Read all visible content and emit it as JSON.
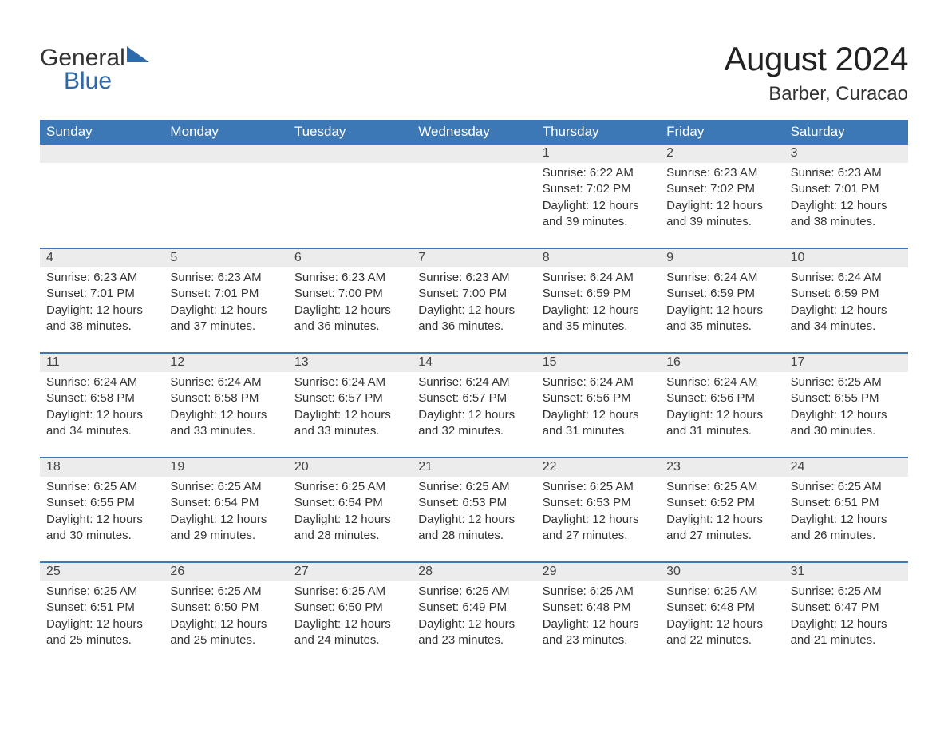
{
  "logo": {
    "word1": "General",
    "word2": "Blue",
    "accent_color": "#2e6aa8"
  },
  "title": "August 2024",
  "location": "Barber, Curacao",
  "header_bg": "#3b78b5",
  "daynum_bg": "#ececec",
  "day_names": [
    "Sunday",
    "Monday",
    "Tuesday",
    "Wednesday",
    "Thursday",
    "Friday",
    "Saturday"
  ],
  "weeks": [
    [
      null,
      null,
      null,
      null,
      {
        "n": "1",
        "sunrise": "Sunrise: 6:22 AM",
        "sunset": "Sunset: 7:02 PM",
        "d1": "Daylight: 12 hours",
        "d2": "and 39 minutes."
      },
      {
        "n": "2",
        "sunrise": "Sunrise: 6:23 AM",
        "sunset": "Sunset: 7:02 PM",
        "d1": "Daylight: 12 hours",
        "d2": "and 39 minutes."
      },
      {
        "n": "3",
        "sunrise": "Sunrise: 6:23 AM",
        "sunset": "Sunset: 7:01 PM",
        "d1": "Daylight: 12 hours",
        "d2": "and 38 minutes."
      }
    ],
    [
      {
        "n": "4",
        "sunrise": "Sunrise: 6:23 AM",
        "sunset": "Sunset: 7:01 PM",
        "d1": "Daylight: 12 hours",
        "d2": "and 38 minutes."
      },
      {
        "n": "5",
        "sunrise": "Sunrise: 6:23 AM",
        "sunset": "Sunset: 7:01 PM",
        "d1": "Daylight: 12 hours",
        "d2": "and 37 minutes."
      },
      {
        "n": "6",
        "sunrise": "Sunrise: 6:23 AM",
        "sunset": "Sunset: 7:00 PM",
        "d1": "Daylight: 12 hours",
        "d2": "and 36 minutes."
      },
      {
        "n": "7",
        "sunrise": "Sunrise: 6:23 AM",
        "sunset": "Sunset: 7:00 PM",
        "d1": "Daylight: 12 hours",
        "d2": "and 36 minutes."
      },
      {
        "n": "8",
        "sunrise": "Sunrise: 6:24 AM",
        "sunset": "Sunset: 6:59 PM",
        "d1": "Daylight: 12 hours",
        "d2": "and 35 minutes."
      },
      {
        "n": "9",
        "sunrise": "Sunrise: 6:24 AM",
        "sunset": "Sunset: 6:59 PM",
        "d1": "Daylight: 12 hours",
        "d2": "and 35 minutes."
      },
      {
        "n": "10",
        "sunrise": "Sunrise: 6:24 AM",
        "sunset": "Sunset: 6:59 PM",
        "d1": "Daylight: 12 hours",
        "d2": "and 34 minutes."
      }
    ],
    [
      {
        "n": "11",
        "sunrise": "Sunrise: 6:24 AM",
        "sunset": "Sunset: 6:58 PM",
        "d1": "Daylight: 12 hours",
        "d2": "and 34 minutes."
      },
      {
        "n": "12",
        "sunrise": "Sunrise: 6:24 AM",
        "sunset": "Sunset: 6:58 PM",
        "d1": "Daylight: 12 hours",
        "d2": "and 33 minutes."
      },
      {
        "n": "13",
        "sunrise": "Sunrise: 6:24 AM",
        "sunset": "Sunset: 6:57 PM",
        "d1": "Daylight: 12 hours",
        "d2": "and 33 minutes."
      },
      {
        "n": "14",
        "sunrise": "Sunrise: 6:24 AM",
        "sunset": "Sunset: 6:57 PM",
        "d1": "Daylight: 12 hours",
        "d2": "and 32 minutes."
      },
      {
        "n": "15",
        "sunrise": "Sunrise: 6:24 AM",
        "sunset": "Sunset: 6:56 PM",
        "d1": "Daylight: 12 hours",
        "d2": "and 31 minutes."
      },
      {
        "n": "16",
        "sunrise": "Sunrise: 6:24 AM",
        "sunset": "Sunset: 6:56 PM",
        "d1": "Daylight: 12 hours",
        "d2": "and 31 minutes."
      },
      {
        "n": "17",
        "sunrise": "Sunrise: 6:25 AM",
        "sunset": "Sunset: 6:55 PM",
        "d1": "Daylight: 12 hours",
        "d2": "and 30 minutes."
      }
    ],
    [
      {
        "n": "18",
        "sunrise": "Sunrise: 6:25 AM",
        "sunset": "Sunset: 6:55 PM",
        "d1": "Daylight: 12 hours",
        "d2": "and 30 minutes."
      },
      {
        "n": "19",
        "sunrise": "Sunrise: 6:25 AM",
        "sunset": "Sunset: 6:54 PM",
        "d1": "Daylight: 12 hours",
        "d2": "and 29 minutes."
      },
      {
        "n": "20",
        "sunrise": "Sunrise: 6:25 AM",
        "sunset": "Sunset: 6:54 PM",
        "d1": "Daylight: 12 hours",
        "d2": "and 28 minutes."
      },
      {
        "n": "21",
        "sunrise": "Sunrise: 6:25 AM",
        "sunset": "Sunset: 6:53 PM",
        "d1": "Daylight: 12 hours",
        "d2": "and 28 minutes."
      },
      {
        "n": "22",
        "sunrise": "Sunrise: 6:25 AM",
        "sunset": "Sunset: 6:53 PM",
        "d1": "Daylight: 12 hours",
        "d2": "and 27 minutes."
      },
      {
        "n": "23",
        "sunrise": "Sunrise: 6:25 AM",
        "sunset": "Sunset: 6:52 PM",
        "d1": "Daylight: 12 hours",
        "d2": "and 27 minutes."
      },
      {
        "n": "24",
        "sunrise": "Sunrise: 6:25 AM",
        "sunset": "Sunset: 6:51 PM",
        "d1": "Daylight: 12 hours",
        "d2": "and 26 minutes."
      }
    ],
    [
      {
        "n": "25",
        "sunrise": "Sunrise: 6:25 AM",
        "sunset": "Sunset: 6:51 PM",
        "d1": "Daylight: 12 hours",
        "d2": "and 25 minutes."
      },
      {
        "n": "26",
        "sunrise": "Sunrise: 6:25 AM",
        "sunset": "Sunset: 6:50 PM",
        "d1": "Daylight: 12 hours",
        "d2": "and 25 minutes."
      },
      {
        "n": "27",
        "sunrise": "Sunrise: 6:25 AM",
        "sunset": "Sunset: 6:50 PM",
        "d1": "Daylight: 12 hours",
        "d2": "and 24 minutes."
      },
      {
        "n": "28",
        "sunrise": "Sunrise: 6:25 AM",
        "sunset": "Sunset: 6:49 PM",
        "d1": "Daylight: 12 hours",
        "d2": "and 23 minutes."
      },
      {
        "n": "29",
        "sunrise": "Sunrise: 6:25 AM",
        "sunset": "Sunset: 6:48 PM",
        "d1": "Daylight: 12 hours",
        "d2": "and 23 minutes."
      },
      {
        "n": "30",
        "sunrise": "Sunrise: 6:25 AM",
        "sunset": "Sunset: 6:48 PM",
        "d1": "Daylight: 12 hours",
        "d2": "and 22 minutes."
      },
      {
        "n": "31",
        "sunrise": "Sunrise: 6:25 AM",
        "sunset": "Sunset: 6:47 PM",
        "d1": "Daylight: 12 hours",
        "d2": "and 21 minutes."
      }
    ]
  ]
}
